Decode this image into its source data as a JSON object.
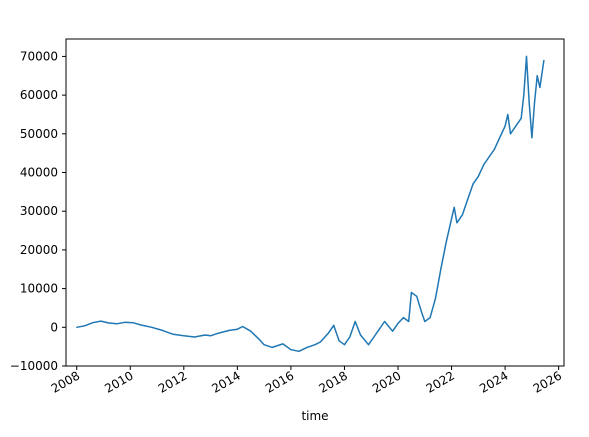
{
  "chart_data": {
    "type": "line",
    "title": "",
    "xlabel": "time",
    "ylabel": "",
    "grid": false,
    "legend": "none",
    "line_color": "#1f77b4",
    "xlim": [
      2007.6,
      2026.2
    ],
    "ylim": [
      -10000,
      74500
    ],
    "x_ticks": [
      2008,
      2010,
      2012,
      2014,
      2016,
      2018,
      2020,
      2022,
      2024,
      2026
    ],
    "x_tick_labels": [
      "2008",
      "2010",
      "2012",
      "2014",
      "2016",
      "2018",
      "2020",
      "2022",
      "2024",
      "2026"
    ],
    "y_ticks": [
      -10000,
      0,
      10000,
      20000,
      30000,
      40000,
      50000,
      60000,
      70000
    ],
    "y_tick_labels": [
      "−10000",
      "0",
      "10000",
      "20000",
      "30000",
      "40000",
      "50000",
      "60000",
      "70000"
    ],
    "series": [
      {
        "x": [
          2008.0,
          2008.3,
          2008.6,
          2008.9,
          2009.2,
          2009.5,
          2009.8,
          2010.1,
          2010.4,
          2010.8,
          2011.2,
          2011.6,
          2012.0,
          2012.4,
          2012.8,
          2013.0,
          2013.3,
          2013.7,
          2014.0,
          2014.2,
          2014.5,
          2014.8,
          2015.0,
          2015.3,
          2015.7,
          2016.0,
          2016.3,
          2016.6,
          2016.9,
          2017.1,
          2017.4,
          2017.6,
          2017.8,
          2018.0,
          2018.2,
          2018.4,
          2018.6,
          2018.9,
          2019.1,
          2019.3,
          2019.5,
          2019.8,
          2020.0,
          2020.2,
          2020.4,
          2020.5,
          2020.7,
          2020.9,
          2021.0,
          2021.2,
          2021.4,
          2021.6,
          2021.8,
          2022.0,
          2022.1,
          2022.2,
          2022.4,
          2022.6,
          2022.8,
          2023.0,
          2023.2,
          2023.4,
          2023.6,
          2023.8,
          2024.0,
          2024.1,
          2024.2,
          2024.4,
          2024.6,
          2024.7,
          2024.8,
          2024.9,
          2025.0,
          2025.1,
          2025.2,
          2025.3,
          2025.45
        ],
        "values": [
          0,
          400,
          1200,
          1600,
          1100,
          900,
          1300,
          1200,
          600,
          0,
          -800,
          -1800,
          -2200,
          -2500,
          -2000,
          -2200,
          -1500,
          -800,
          -500,
          200,
          -1000,
          -3000,
          -4500,
          -5200,
          -4300,
          -5800,
          -6200,
          -5200,
          -4500,
          -3800,
          -1500,
          500,
          -3500,
          -4500,
          -2500,
          1500,
          -2000,
          -4500,
          -2500,
          -500,
          1500,
          -1000,
          1000,
          2500,
          1500,
          9000,
          8000,
          3500,
          1500,
          2500,
          7500,
          15000,
          22000,
          28000,
          31000,
          27000,
          29000,
          33000,
          37000,
          39000,
          42000,
          44000,
          46000,
          49000,
          52000,
          55000,
          50000,
          52000,
          54000,
          60000,
          70000,
          58000,
          49000,
          58000,
          65000,
          62000,
          69000
        ]
      }
    ]
  }
}
